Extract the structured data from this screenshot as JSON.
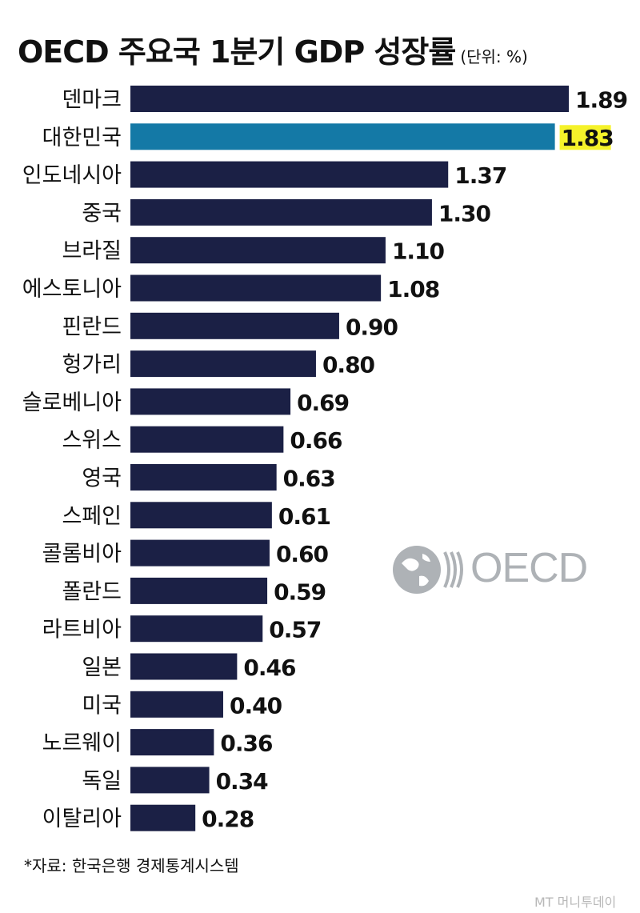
{
  "title": {
    "main": "OECD 주요국 1분기 GDP 성장률",
    "unit": "(단위: %)"
  },
  "chart_data": {
    "type": "bar",
    "orientation": "horizontal",
    "title": "OECD 주요국 1분기 GDP 성장률",
    "unit": "(단위: %)",
    "categories": [
      "덴마크",
      "대한민국",
      "인도네시아",
      "중국",
      "브라질",
      "에스토니아",
      "핀란드",
      "헝가리",
      "슬로베니아",
      "스위스",
      "영국",
      "스페인",
      "콜롬비아",
      "폴란드",
      "라트비아",
      "일본",
      "미국",
      "노르웨이",
      "독일",
      "이탈리아"
    ],
    "values": [
      1.89,
      1.83,
      1.37,
      1.3,
      1.1,
      1.08,
      0.9,
      0.8,
      0.69,
      0.66,
      0.63,
      0.61,
      0.6,
      0.59,
      0.57,
      0.46,
      0.4,
      0.36,
      0.34,
      0.28
    ],
    "value_labels": [
      "1.89",
      "1.83",
      "1.37",
      "1.30",
      "1.10",
      "1.08",
      "0.90",
      "0.80",
      "0.69",
      "0.66",
      "0.63",
      "0.61",
      "0.60",
      "0.59",
      "0.57",
      "0.46",
      "0.40",
      "0.36",
      "0.34",
      "0.28"
    ],
    "highlight_index": 1,
    "xlim": [
      0,
      1.89
    ],
    "grid": false,
    "colors": {
      "bar": "#1b2045",
      "highlight_bar": "#1479a6",
      "highlight_label_bg": "#f5f22a"
    }
  },
  "source": "*자료: 한국은행 경제통계시스템",
  "logo_text": "OECD",
  "watermark": "MT 머니투데이"
}
